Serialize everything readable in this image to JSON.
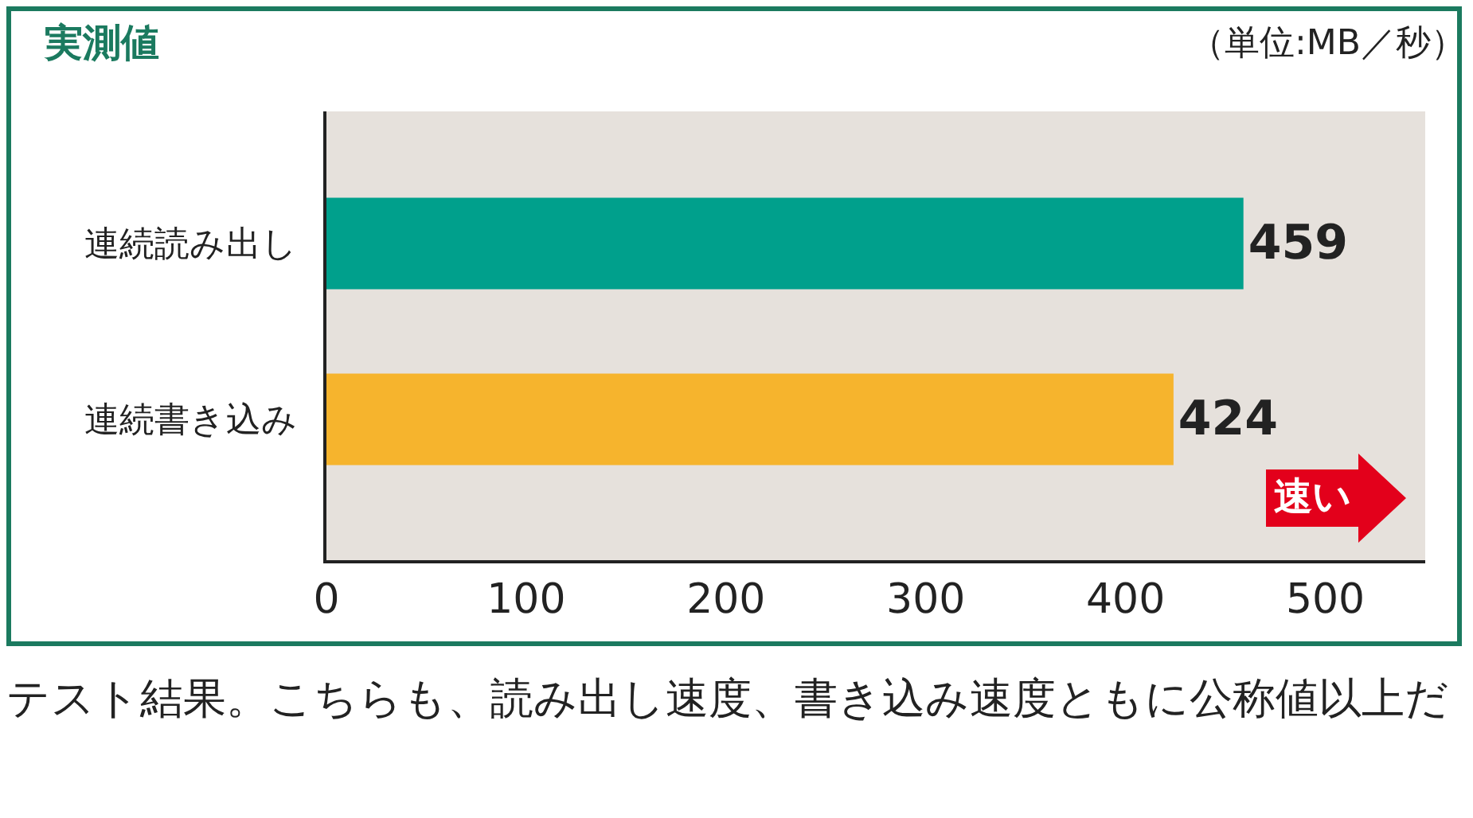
{
  "chart_data": {
    "type": "bar",
    "orientation": "horizontal",
    "title": "実測値",
    "categories": [
      "連続読み出し",
      "連続書き込み"
    ],
    "values": [
      459,
      424
    ],
    "colors": [
      "#00a08c",
      "#f6b42d"
    ],
    "xlim": [
      0,
      550
    ],
    "xticks": [
      0,
      100,
      200,
      300,
      400,
      500
    ],
    "data_labels": true,
    "annotations": [
      "（単位:MB／秒）",
      "速い",
      "テスト結果。こちらも、読み出し速度、書き込み速度ともに公称値以上だ"
    ]
  }
}
